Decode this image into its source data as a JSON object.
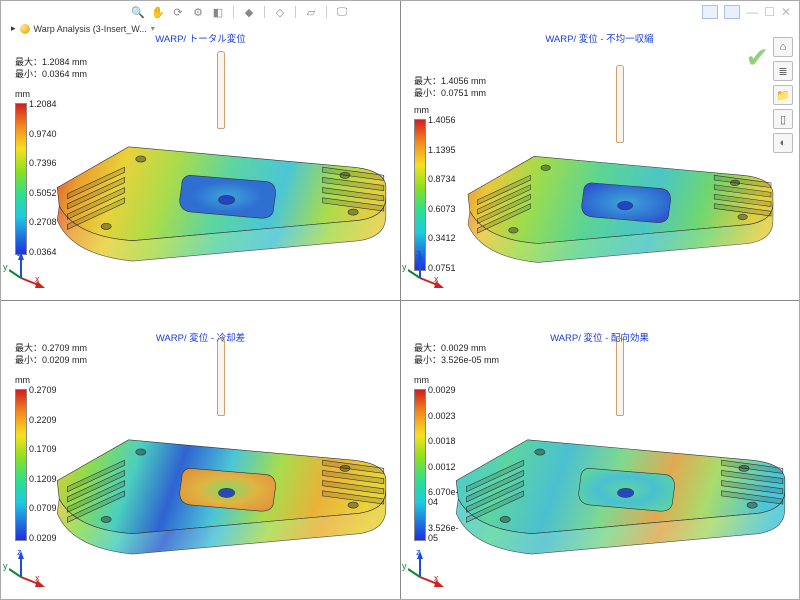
{
  "toolbar": {
    "icons": [
      "zoom-icon",
      "hand-icon",
      "rotate-icon",
      "settings-icon",
      "cube-icon",
      "sep",
      "shape-icon",
      "sep",
      "diamond-icon",
      "sep",
      "shape2-icon",
      "sep",
      "display-icon"
    ]
  },
  "tree": {
    "expand": "▸",
    "label": "Warp Analysis (3-Insert_W...",
    "caret": "▾"
  },
  "top_right_icons": [
    "win1",
    "win2",
    "minus",
    "square",
    "close"
  ],
  "side_icons": [
    "home-icon",
    "layers-icon",
    "folder-icon",
    "tag-icon",
    "light-icon"
  ],
  "panels": [
    {
      "title": "WARP/ トータル変位",
      "max_label": "最大：",
      "max_value": "1.2084 mm",
      "min_label": "最小：",
      "min_value": "0.0364 mm",
      "unit": "mm",
      "ticks": [
        "1.2084",
        "0.9740",
        "0.7396",
        "0.5052",
        "0.2708",
        "0.0364"
      ],
      "gradient": {
        "body_stops": [
          {
            "o": "0%",
            "c": "#d94b2b"
          },
          {
            "o": "10%",
            "c": "#e9a02f"
          },
          {
            "o": "22%",
            "c": "#e9d23a"
          },
          {
            "o": "38%",
            "c": "#a9dc4c"
          },
          {
            "o": "55%",
            "c": "#5cd5a1"
          },
          {
            "o": "72%",
            "c": "#4bc6d6"
          },
          {
            "o": "88%",
            "c": "#a9dc4c"
          },
          {
            "o": "100%",
            "c": "#e0cf42"
          }
        ],
        "cavity_stops": [
          {
            "o": "0%",
            "c": "#3da6d9"
          },
          {
            "o": "60%",
            "c": "#2f6fd2"
          },
          {
            "o": "100%",
            "c": "#2f6fd2"
          }
        ]
      }
    },
    {
      "title": "WARP/ 変位 - 不均一収縮",
      "max_label": "最大：",
      "max_value": "1.4056 mm",
      "min_label": "最小：",
      "min_value": "0.0751 mm",
      "unit": "mm",
      "ticks": [
        "1.4056",
        "1.1395",
        "0.8734",
        "0.6073",
        "0.3412",
        "0.0751"
      ],
      "gradient": {
        "body_stops": [
          {
            "o": "0%",
            "c": "#e88a2f"
          },
          {
            "o": "10%",
            "c": "#e9c83a"
          },
          {
            "o": "25%",
            "c": "#9fdc4c"
          },
          {
            "o": "45%",
            "c": "#5cd592"
          },
          {
            "o": "65%",
            "c": "#4bc6c6"
          },
          {
            "o": "82%",
            "c": "#6fd66f"
          },
          {
            "o": "100%",
            "c": "#e0cf42"
          }
        ],
        "cavity_stops": [
          {
            "o": "0%",
            "c": "#3da6d9"
          },
          {
            "o": "70%",
            "c": "#2f6fd2"
          },
          {
            "o": "100%",
            "c": "#2f50d2"
          }
        ]
      }
    },
    {
      "title": "WARP/ 変位 - 冷却差",
      "max_label": "最大：",
      "max_value": "0.2709 mm",
      "min_label": "最小：",
      "min_value": "0.0209 mm",
      "unit": "mm",
      "ticks": [
        "0.2709",
        "0.2209",
        "0.1709",
        "0.1209",
        "0.0709",
        "0.0209"
      ],
      "gradient": {
        "body_stops": [
          {
            "o": "0%",
            "c": "#e9c63a"
          },
          {
            "o": "12%",
            "c": "#8fdc4c"
          },
          {
            "o": "26%",
            "c": "#4bd0bf"
          },
          {
            "o": "40%",
            "c": "#2f63d2"
          },
          {
            "o": "55%",
            "c": "#4bc6d6"
          },
          {
            "o": "70%",
            "c": "#a9dc4c"
          },
          {
            "o": "85%",
            "c": "#e9b23a"
          },
          {
            "o": "100%",
            "c": "#e9d23a"
          }
        ],
        "cavity_stops": [
          {
            "o": "0%",
            "c": "#7fd96a"
          },
          {
            "o": "50%",
            "c": "#e0b442"
          },
          {
            "o": "100%",
            "c": "#e0943a"
          }
        ]
      }
    },
    {
      "title": "WARP/ 変位 - 配向効果",
      "max_label": "最大：",
      "max_value": "0.0029 mm",
      "min_label": "最小：",
      "min_value": "3.526e-05 mm",
      "unit": "mm",
      "ticks": [
        "0.0029",
        "0.0023",
        "0.0018",
        "0.0012",
        "6.070e-04",
        "3.526e-05"
      ],
      "gradient": {
        "body_stops": [
          {
            "o": "0%",
            "c": "#4bc9d6"
          },
          {
            "o": "18%",
            "c": "#5cd5a1"
          },
          {
            "o": "35%",
            "c": "#4bc0d0"
          },
          {
            "o": "52%",
            "c": "#7fd98f"
          },
          {
            "o": "68%",
            "c": "#e0aa52"
          },
          {
            "o": "82%",
            "c": "#a9dc6c"
          },
          {
            "o": "100%",
            "c": "#4bc6d6"
          }
        ],
        "cavity_stops": [
          {
            "o": "0%",
            "c": "#5cd5a1"
          },
          {
            "o": "50%",
            "c": "#4bc0d0"
          },
          {
            "o": "100%",
            "c": "#5cd5a1"
          }
        ]
      }
    }
  ],
  "axis_labels": {
    "x": "x",
    "y": "y",
    "z": "z"
  }
}
